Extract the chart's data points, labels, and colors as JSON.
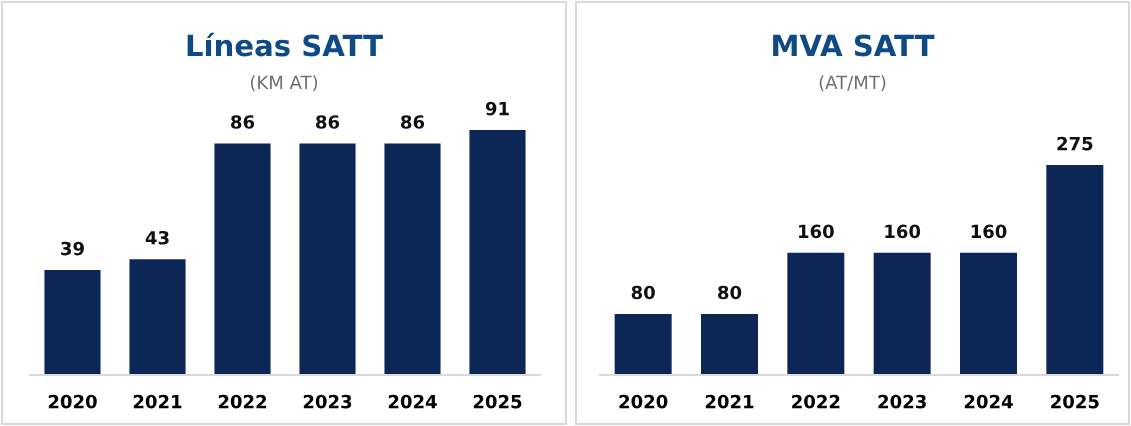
{
  "chart_data": [
    {
      "type": "bar",
      "title": "Líneas SATT",
      "subtitle": "(KM AT)",
      "categories": [
        "2020",
        "2021",
        "2022",
        "2023",
        "2024",
        "2025"
      ],
      "values": [
        39,
        43,
        86,
        86,
        86,
        91
      ],
      "color": "#0c2756",
      "data_labels": true,
      "grid": false,
      "legend": false
    },
    {
      "type": "bar",
      "title": "MVA SATT",
      "subtitle": "(AT/MT)",
      "categories": [
        "2020",
        "2021",
        "2022",
        "2023",
        "2024",
        "2025"
      ],
      "values": [
        80,
        80,
        160,
        160,
        160,
        275
      ],
      "color": "#0c2756",
      "data_labels": true,
      "grid": false,
      "legend": false
    }
  ]
}
